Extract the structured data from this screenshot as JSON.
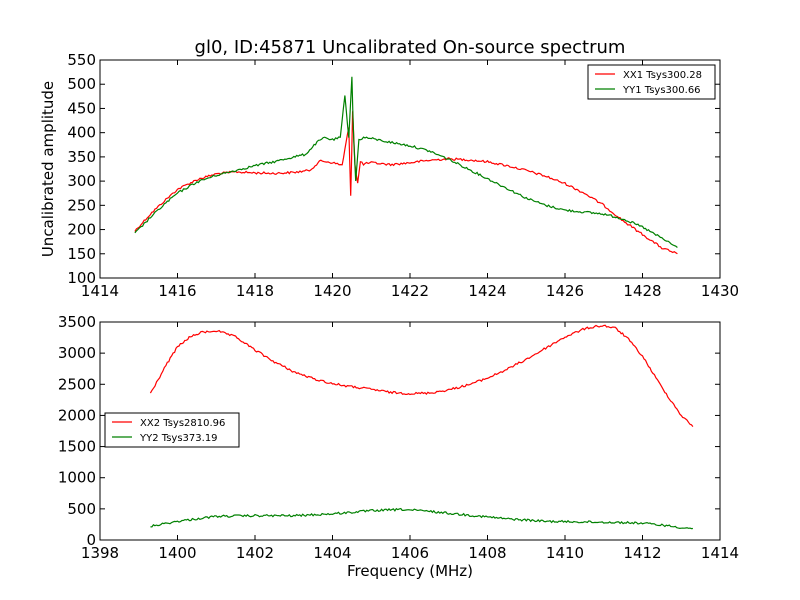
{
  "chart_data": [
    {
      "type": "line",
      "title": "gl0, ID:45871 Uncalibrated On-source spectrum",
      "xlabel": "",
      "ylabel": "Uncalibrated amplitude",
      "xlim": [
        1414,
        1430
      ],
      "ylim": [
        100,
        550
      ],
      "xticks": [
        "1414",
        "1416",
        "1418",
        "1420",
        "1422",
        "1424",
        "1426",
        "1428",
        "1430"
      ],
      "yticks": [
        "100",
        "150",
        "200",
        "250",
        "300",
        "350",
        "400",
        "450",
        "500",
        "550"
      ],
      "grid": false,
      "legend_position": "top-right",
      "series": [
        {
          "name": "XX1 Tsys300.28",
          "color": "#ff0000",
          "x": [
            1414.9,
            1415.3,
            1415.7,
            1416.0,
            1416.5,
            1417.0,
            1417.5,
            1418.0,
            1418.5,
            1419.0,
            1419.4,
            1419.7,
            1420.0,
            1420.25,
            1420.35,
            1420.42,
            1420.47,
            1420.52,
            1420.58,
            1420.65,
            1420.72,
            1420.8,
            1421.0,
            1421.5,
            1422.0,
            1422.5,
            1423.0,
            1423.5,
            1424.0,
            1424.5,
            1425.0,
            1425.5,
            1426.0,
            1426.5,
            1427.0,
            1427.5,
            1428.0,
            1428.5,
            1428.9
          ],
          "values": [
            197,
            232,
            262,
            283,
            303,
            315,
            319,
            317,
            316,
            318,
            322,
            342,
            338,
            333,
            380,
            410,
            270,
            445,
            335,
            295,
            340,
            335,
            338,
            334,
            338,
            343,
            346,
            344,
            340,
            332,
            322,
            310,
            295,
            275,
            250,
            218,
            190,
            162,
            150
          ]
        },
        {
          "name": "YY1 Tsys300.66",
          "color": "#008000",
          "x": [
            1414.9,
            1415.3,
            1415.7,
            1416.0,
            1416.5,
            1417.0,
            1417.5,
            1418.0,
            1418.5,
            1419.0,
            1419.3,
            1419.6,
            1419.8,
            1420.0,
            1420.2,
            1420.32,
            1420.42,
            1420.5,
            1420.55,
            1420.6,
            1420.68,
            1420.8,
            1421.0,
            1421.5,
            1422.0,
            1422.5,
            1423.0,
            1423.5,
            1424.0,
            1424.5,
            1425.0,
            1425.5,
            1426.0,
            1426.5,
            1427.0,
            1427.5,
            1428.0,
            1428.5,
            1428.9
          ],
          "values": [
            192,
            225,
            255,
            275,
            298,
            312,
            322,
            332,
            340,
            350,
            355,
            380,
            390,
            385,
            390,
            475,
            390,
            515,
            380,
            300,
            385,
            390,
            388,
            380,
            373,
            362,
            345,
            325,
            305,
            285,
            265,
            250,
            240,
            236,
            232,
            222,
            205,
            182,
            163
          ]
        }
      ]
    },
    {
      "type": "line",
      "title": "",
      "xlabel": "Frequency (MHz)",
      "ylabel": "",
      "xlim": [
        1398,
        1414
      ],
      "ylim": [
        0,
        3500
      ],
      "xticks": [
        "1398",
        "1400",
        "1402",
        "1404",
        "1406",
        "1408",
        "1410",
        "1412",
        "1414"
      ],
      "yticks": [
        "0",
        "500",
        "1000",
        "1500",
        "2000",
        "2500",
        "3000",
        "3500"
      ],
      "grid": false,
      "legend_position": "middle-left",
      "series": [
        {
          "name": "XX2 Tsys2810.96",
          "color": "#ff0000",
          "x": [
            1399.3,
            1399.7,
            1400.0,
            1400.3,
            1400.6,
            1401.0,
            1401.5,
            1402.0,
            1402.5,
            1403.0,
            1403.5,
            1404.0,
            1404.5,
            1405.0,
            1405.5,
            1406.0,
            1406.5,
            1407.0,
            1407.5,
            1408.0,
            1408.5,
            1409.0,
            1409.5,
            1410.0,
            1410.5,
            1410.8,
            1411.0,
            1411.3,
            1411.6,
            1412.0,
            1412.5,
            1413.0,
            1413.3
          ],
          "values": [
            2350,
            2800,
            3100,
            3250,
            3330,
            3360,
            3260,
            3050,
            2860,
            2700,
            2590,
            2510,
            2460,
            2420,
            2370,
            2350,
            2360,
            2410,
            2490,
            2600,
            2740,
            2900,
            3080,
            3260,
            3390,
            3430,
            3440,
            3400,
            3250,
            2950,
            2450,
            2000,
            1820
          ]
        },
        {
          "name": "YY2 Tsys373.19",
          "color": "#008000",
          "x": [
            1399.3,
            1400.0,
            1401.0,
            1402.0,
            1403.0,
            1404.0,
            1405.0,
            1405.8,
            1406.5,
            1407.5,
            1408.5,
            1409.5,
            1410.5,
            1411.5,
            1412.0,
            1412.5,
            1413.0,
            1413.3
          ],
          "values": [
            220,
            300,
            380,
            390,
            390,
            420,
            470,
            490,
            460,
            400,
            340,
            300,
            290,
            280,
            270,
            240,
            200,
            185
          ]
        }
      ]
    }
  ]
}
